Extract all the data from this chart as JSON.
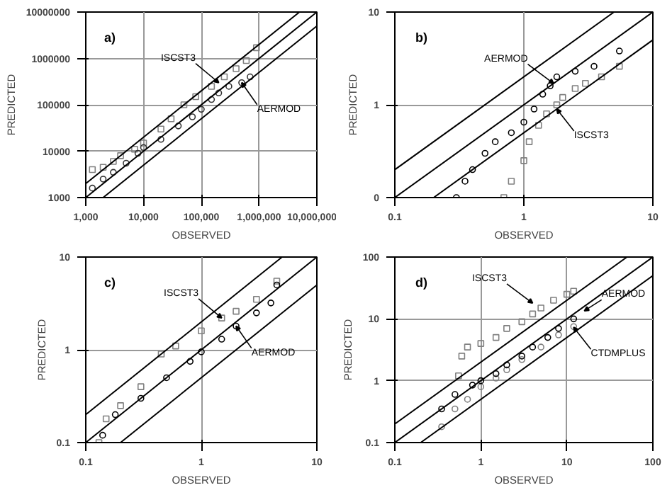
{
  "chart_data": [
    {
      "type": "scatter",
      "title": "a)",
      "xlabel": "OBSERVED",
      "ylabel": "PREDICTED",
      "log": "xy",
      "grid": true,
      "xlim": [
        1000,
        10000000
      ],
      "ylim": [
        1000,
        10000000
      ],
      "xticks": [
        {
          "value": 1000,
          "label": "1,000"
        },
        {
          "value": 10000,
          "label": "10,000"
        },
        {
          "value": 100000,
          "label": "100,000"
        },
        {
          "value": 1000000,
          "label": "1,000,000"
        },
        {
          "value": 10000000,
          "label": "10,000,000"
        }
      ],
      "yticks": [
        1000,
        10000,
        100000,
        1000000,
        10000000
      ],
      "series": [
        {
          "marker": "square",
          "color": "#808080",
          "x": [
            1300,
            2000,
            3000,
            4000,
            7000,
            10000,
            20000,
            30000,
            50000,
            80000,
            150000,
            250000,
            400000,
            600000,
            900000
          ],
          "values": [
            4000,
            4500,
            6000,
            8000,
            11000,
            15000,
            30000,
            50000,
            100000,
            150000,
            250000,
            400000,
            600000,
            900000,
            1700000
          ]
        },
        {
          "marker": "circle",
          "color": "#333333",
          "x": [
            1300,
            2000,
            3000,
            5000,
            8000,
            10000,
            20000,
            40000,
            70000,
            100000,
            150000,
            200000,
            300000,
            500000,
            700000
          ],
          "values": [
            1600,
            2500,
            3500,
            5500,
            9000,
            12000,
            18000,
            35000,
            55000,
            80000,
            130000,
            180000,
            250000,
            300000,
            400000
          ]
        },
        {
          "type": "line",
          "color": "#000000",
          "x": [
            1000,
            10000000
          ],
          "values": [
            1000,
            10000000
          ]
        },
        {
          "type": "line",
          "color": "#000000",
          "x": [
            1000,
            5000000
          ],
          "values": [
            2000,
            10000000
          ]
        },
        {
          "type": "line",
          "color": "#000000",
          "x": [
            2000,
            10000000
          ],
          "values": [
            1000,
            5000000
          ]
        }
      ],
      "annotations": [
        {
          "text": "ISCST3",
          "x": 200000,
          "y": 300000
        },
        {
          "text": "AERMOD",
          "x": 500000,
          "y": 300000
        }
      ]
    },
    {
      "type": "scatter",
      "title": "b)",
      "xlabel": "OBSERVED",
      "ylabel": "PREDICTED",
      "log": "xy",
      "grid": true,
      "xlim": [
        0.1,
        10
      ],
      "ylim": [
        0.1,
        10
      ],
      "xticks": [
        0.1,
        1,
        10
      ],
      "yticks": [
        {
          "value": 0.1,
          "label": "0"
        },
        1,
        10
      ],
      "series": [
        {
          "marker": "circle",
          "color": "#000000",
          "x": [
            0.3,
            0.35,
            0.4,
            0.5,
            0.6,
            0.8,
            1.0,
            1.2,
            1.4,
            1.6,
            1.8,
            2.5,
            3.5,
            5.5
          ],
          "values": [
            0.1,
            0.15,
            0.2,
            0.3,
            0.4,
            0.5,
            0.65,
            0.9,
            1.3,
            1.6,
            2.0,
            2.3,
            2.6,
            3.8
          ]
        },
        {
          "marker": "square",
          "color": "#808080",
          "x": [
            0.7,
            0.8,
            1.0,
            1.1,
            1.3,
            1.5,
            1.8,
            2.0,
            2.5,
            3,
            4,
            5.5
          ],
          "values": [
            0.1,
            0.15,
            0.25,
            0.4,
            0.6,
            0.8,
            1.0,
            1.2,
            1.5,
            1.7,
            2.0,
            2.6
          ]
        },
        {
          "type": "line",
          "color": "#000000",
          "x": [
            0.1,
            10
          ],
          "values": [
            0.1,
            10
          ]
        },
        {
          "type": "line",
          "color": "#000000",
          "x": [
            0.1,
            5
          ],
          "values": [
            0.2,
            10
          ]
        },
        {
          "type": "line",
          "color": "#000000",
          "x": [
            0.2,
            10
          ],
          "values": [
            0.1,
            5
          ]
        }
      ],
      "annotations": [
        {
          "text": "AERMOD",
          "x": 1.7,
          "y": 1.7
        },
        {
          "text": "ISCST3",
          "x": 1.8,
          "y": 0.9
        }
      ]
    },
    {
      "type": "scatter",
      "title": "c)",
      "xlabel": "OBSERVED",
      "ylabel": "PREDICTED",
      "log": "xy",
      "grid": true,
      "xlim": [
        0.1,
        10
      ],
      "ylim": [
        0.1,
        10
      ],
      "xticks": [
        0.1,
        1,
        10
      ],
      "yticks": [
        0.1,
        1,
        10
      ],
      "series": [
        {
          "marker": "square",
          "color": "#808080",
          "x": [
            0.13,
            0.15,
            0.2,
            0.3,
            0.45,
            0.6,
            1,
            1.5,
            2,
            3,
            4.5
          ],
          "values": [
            0.1,
            0.18,
            0.25,
            0.4,
            0.9,
            1.1,
            1.6,
            2.2,
            2.6,
            3.5,
            5.5
          ]
        },
        {
          "marker": "circle",
          "color": "#000000",
          "x": [
            0.14,
            0.18,
            0.3,
            0.5,
            0.8,
            1,
            1.5,
            2,
            3,
            4,
            4.5
          ],
          "values": [
            0.12,
            0.2,
            0.3,
            0.5,
            0.75,
            0.95,
            1.3,
            1.8,
            2.5,
            3.2,
            5
          ]
        },
        {
          "type": "line",
          "color": "#000000",
          "x": [
            0.1,
            10
          ],
          "values": [
            0.1,
            10
          ]
        },
        {
          "type": "line",
          "color": "#000000",
          "x": [
            0.1,
            5
          ],
          "values": [
            0.2,
            10
          ]
        },
        {
          "type": "line",
          "color": "#000000",
          "x": [
            0.2,
            10
          ],
          "values": [
            0.1,
            5
          ]
        }
      ],
      "annotations": [
        {
          "text": "ISCST3",
          "x": 1.5,
          "y": 2.2
        },
        {
          "text": "AERMOD",
          "x": 2,
          "y": 1.8
        }
      ]
    },
    {
      "type": "scatter",
      "title": "d)",
      "xlabel": "OBSERVED",
      "ylabel": "PREDICTED",
      "log": "xy",
      "grid": true,
      "xlim": [
        0.1,
        100
      ],
      "ylim": [
        0.1,
        100
      ],
      "xticks": [
        0.1,
        1,
        10,
        100
      ],
      "yticks": [
        0.1,
        1,
        10,
        100
      ],
      "series": [
        {
          "marker": "square",
          "color": "#808080",
          "x": [
            0.55,
            0.6,
            0.7,
            1,
            1.5,
            2,
            3,
            4,
            5,
            7,
            10,
            12
          ],
          "values": [
            1.2,
            2.5,
            3.5,
            4,
            5,
            7,
            9,
            12,
            15,
            20,
            25,
            28
          ]
        },
        {
          "marker": "circle",
          "color": "#808080",
          "x": [
            0.35,
            0.5,
            0.7,
            1,
            1.5,
            2,
            3,
            5,
            8,
            12
          ],
          "values": [
            0.18,
            0.35,
            0.5,
            0.8,
            1.1,
            1.5,
            2.2,
            3.5,
            5.5,
            7.5
          ]
        },
        {
          "marker": "circle",
          "color": "#000000",
          "x": [
            0.35,
            0.5,
            0.8,
            1,
            1.5,
            2,
            3,
            4,
            6,
            8,
            12
          ],
          "values": [
            0.35,
            0.6,
            0.85,
            1,
            1.3,
            1.8,
            2.5,
            3.5,
            5,
            7,
            10
          ]
        },
        {
          "type": "line",
          "color": "#000000",
          "x": [
            0.1,
            100
          ],
          "values": [
            0.1,
            100
          ]
        },
        {
          "type": "line",
          "color": "#000000",
          "x": [
            0.1,
            50
          ],
          "values": [
            0.2,
            100
          ]
        },
        {
          "type": "line",
          "color": "#000000",
          "x": [
            0.2,
            100
          ],
          "values": [
            0.1,
            50
          ]
        }
      ],
      "annotations": [
        {
          "text": "ISCST3",
          "x": 4,
          "y": 18
        },
        {
          "text": "CTDMPLUS",
          "x": 12,
          "y": 7.3
        },
        {
          "text": "AERMOD",
          "x": 16,
          "y": 13.5
        }
      ]
    }
  ]
}
